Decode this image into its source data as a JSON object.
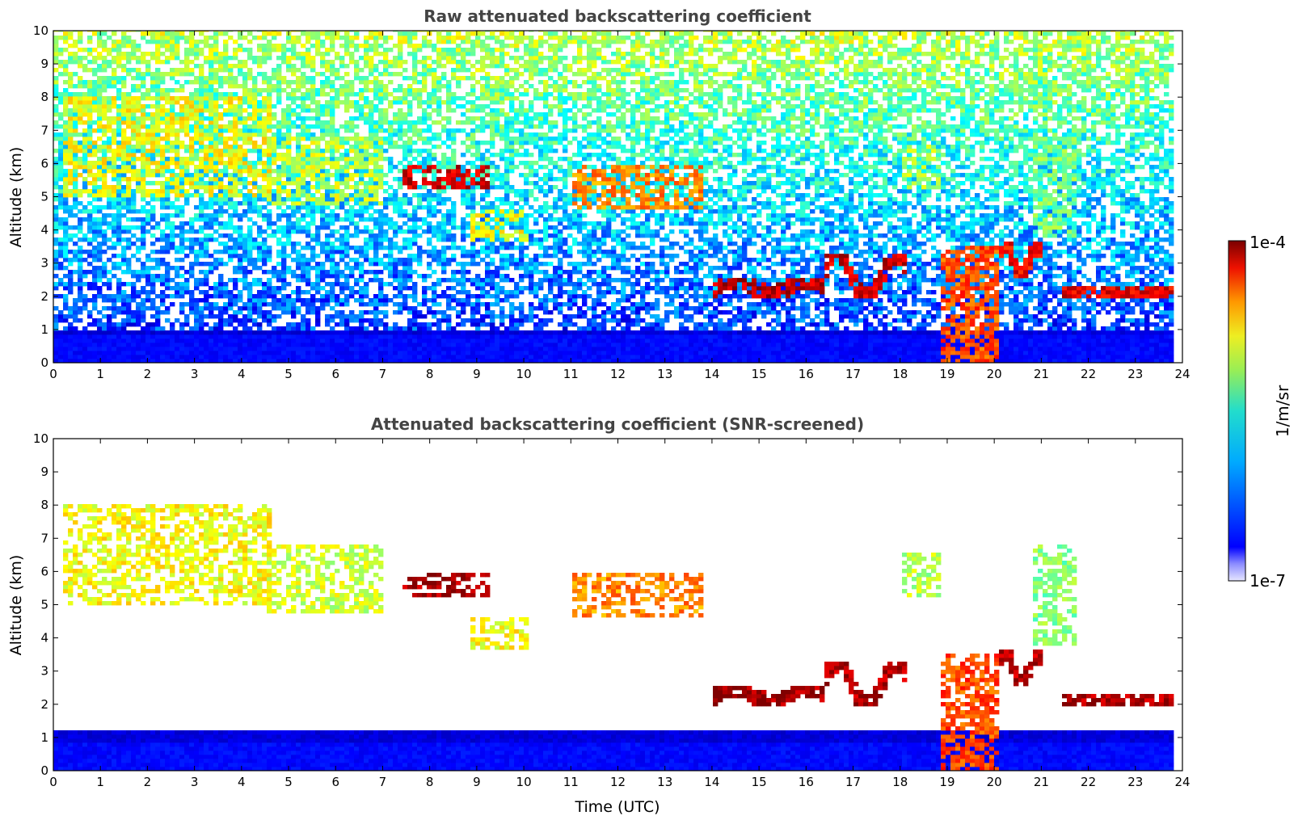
{
  "chart_data": [
    {
      "type": "heatmap",
      "title": "Raw attenuated backscattering coefficient",
      "xlabel": "",
      "ylabel": "Altitude (km)",
      "xlim": [
        0,
        24
      ],
      "ylim": [
        0,
        10
      ],
      "xticks": [
        0,
        1,
        2,
        3,
        4,
        5,
        6,
        7,
        8,
        9,
        10,
        11,
        12,
        13,
        14,
        15,
        16,
        17,
        18,
        19,
        20,
        21,
        22,
        23,
        24
      ],
      "yticks": [
        0,
        1,
        2,
        3,
        4,
        5,
        6,
        7,
        8,
        9,
        10
      ],
      "data_extent_x": [
        0,
        23.8
      ],
      "noise": "noisy",
      "features": [
        {
          "kind": "cirrus",
          "x": [
            0.2,
            4.6
          ],
          "y": [
            5.0,
            8.0
          ],
          "level": 0.62
        },
        {
          "kind": "cirrus",
          "x": [
            4.5,
            7.0
          ],
          "y": [
            4.8,
            6.8
          ],
          "level": 0.58
        },
        {
          "kind": "cloud_layer",
          "x": [
            7.4,
            9.2
          ],
          "y": [
            5.2,
            6.0
          ],
          "level": 0.92
        },
        {
          "kind": "cirrus",
          "x": [
            8.8,
            10.0
          ],
          "y": [
            3.6,
            4.6
          ],
          "level": 0.62
        },
        {
          "kind": "cloud_layer",
          "x": [
            11.0,
            13.8
          ],
          "y": [
            4.6,
            6.0
          ],
          "level": 0.74
        },
        {
          "kind": "cloud_top",
          "x": [
            14.0,
            16.3
          ],
          "y": [
            2.0,
            2.6
          ],
          "level": 0.94
        },
        {
          "kind": "cloud_top",
          "x": [
            16.3,
            18.1
          ],
          "y": [
            1.9,
            3.3
          ],
          "level": 0.92
        },
        {
          "kind": "cirrus",
          "x": [
            18.0,
            18.8
          ],
          "y": [
            5.2,
            6.6
          ],
          "level": 0.55
        },
        {
          "kind": "convective",
          "x": [
            18.8,
            20.0
          ],
          "y": [
            0.0,
            3.5
          ],
          "level": 0.8
        },
        {
          "kind": "cloud_top",
          "x": [
            20.0,
            21.0
          ],
          "y": [
            2.6,
            3.6
          ],
          "level": 0.88
        },
        {
          "kind": "cirrus",
          "x": [
            20.8,
            21.7
          ],
          "y": [
            3.8,
            6.8
          ],
          "level": 0.5
        },
        {
          "kind": "cloud_top",
          "x": [
            21.4,
            23.8
          ],
          "y": [
            1.9,
            2.3
          ],
          "level": 0.9
        },
        {
          "kind": "boundary_layer",
          "x": [
            0.0,
            23.8
          ],
          "y": [
            0.0,
            1.0
          ],
          "level": 0.13
        }
      ]
    },
    {
      "type": "heatmap",
      "title": "Attenuated backscattering coefficient (SNR-screened)",
      "xlabel": "Time (UTC)",
      "ylabel": "Altitude (km)",
      "xlim": [
        0,
        24
      ],
      "ylim": [
        0,
        10
      ],
      "xticks": [
        0,
        1,
        2,
        3,
        4,
        5,
        6,
        7,
        8,
        9,
        10,
        11,
        12,
        13,
        14,
        15,
        16,
        17,
        18,
        19,
        20,
        21,
        22,
        23,
        24
      ],
      "yticks": [
        0,
        1,
        2,
        3,
        4,
        5,
        6,
        7,
        8,
        9,
        10
      ],
      "data_extent_x": [
        0,
        23.8
      ],
      "noise": "screened",
      "features": [
        {
          "kind": "cirrus",
          "x": [
            0.2,
            4.6
          ],
          "y": [
            5.0,
            8.0
          ],
          "level": 0.62
        },
        {
          "kind": "cirrus",
          "x": [
            4.5,
            7.0
          ],
          "y": [
            4.8,
            6.8
          ],
          "level": 0.58
        },
        {
          "kind": "cloud_layer",
          "x": [
            7.4,
            9.2
          ],
          "y": [
            5.2,
            6.0
          ],
          "level": 0.97
        },
        {
          "kind": "cirrus",
          "x": [
            8.8,
            10.0
          ],
          "y": [
            3.6,
            4.6
          ],
          "level": 0.62
        },
        {
          "kind": "cloud_layer",
          "x": [
            11.0,
            13.8
          ],
          "y": [
            4.6,
            6.0
          ],
          "level": 0.74
        },
        {
          "kind": "cloud_top",
          "x": [
            14.0,
            16.3
          ],
          "y": [
            2.0,
            2.6
          ],
          "level": 0.97
        },
        {
          "kind": "cloud_top",
          "x": [
            16.3,
            18.1
          ],
          "y": [
            1.9,
            3.3
          ],
          "level": 0.96
        },
        {
          "kind": "cirrus",
          "x": [
            18.0,
            18.8
          ],
          "y": [
            5.2,
            6.6
          ],
          "level": 0.55
        },
        {
          "kind": "convective",
          "x": [
            18.8,
            20.0
          ],
          "y": [
            0.0,
            3.5
          ],
          "level": 0.8
        },
        {
          "kind": "cloud_top",
          "x": [
            20.0,
            21.0
          ],
          "y": [
            2.6,
            3.6
          ],
          "level": 0.95
        },
        {
          "kind": "cirrus",
          "x": [
            20.8,
            21.7
          ],
          "y": [
            3.8,
            6.8
          ],
          "level": 0.5
        },
        {
          "kind": "cloud_top",
          "x": [
            21.4,
            23.8
          ],
          "y": [
            1.9,
            2.3
          ],
          "level": 0.96
        },
        {
          "kind": "boundary_layer",
          "x": [
            0.0,
            23.8
          ],
          "y": [
            0.0,
            1.2
          ],
          "level": 0.13
        }
      ]
    }
  ],
  "colorbar": {
    "max_label": "1e-4",
    "min_label": "1e-7",
    "unit_label": "1/m/sr",
    "colormap": "jet"
  },
  "colors": {
    "background": "#ffffff",
    "title": "#444444",
    "axis": "#000000"
  }
}
